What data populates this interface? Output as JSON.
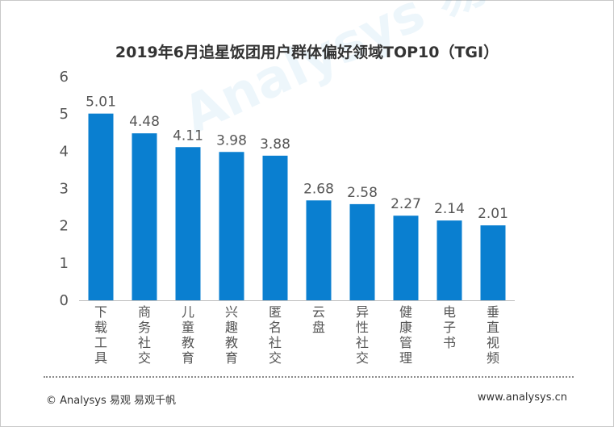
{
  "chart_data": {
    "type": "bar",
    "title": "2019年6月追星饭团用户群体偏好领域TOP10（TGI）",
    "categories": [
      "下载工具",
      "商务社交",
      "儿童教育",
      "兴趣教育",
      "匿名社交",
      "云盘",
      "异性社交",
      "健康管理",
      "电子书",
      "垂直视频"
    ],
    "values": [
      5.01,
      4.48,
      4.11,
      3.98,
      3.88,
      2.68,
      2.58,
      2.27,
      2.14,
      2.01
    ],
    "value_labels": [
      "5.01",
      "4.48",
      "4.11",
      "3.98",
      "3.88",
      "2.68",
      "2.58",
      "2.27",
      "2.14",
      "2.01"
    ],
    "ylim": [
      0,
      6
    ],
    "yticks": [
      0,
      1,
      2,
      3,
      4,
      5,
      6
    ],
    "xlabel": "",
    "ylabel": "",
    "bar_color": "#0a7fd0",
    "grid": false,
    "legend": "none"
  },
  "footer": {
    "left": "© Analysys 易观 易观千帆",
    "right": "www.analysys.cn"
  },
  "watermark": "Analysys 易观"
}
